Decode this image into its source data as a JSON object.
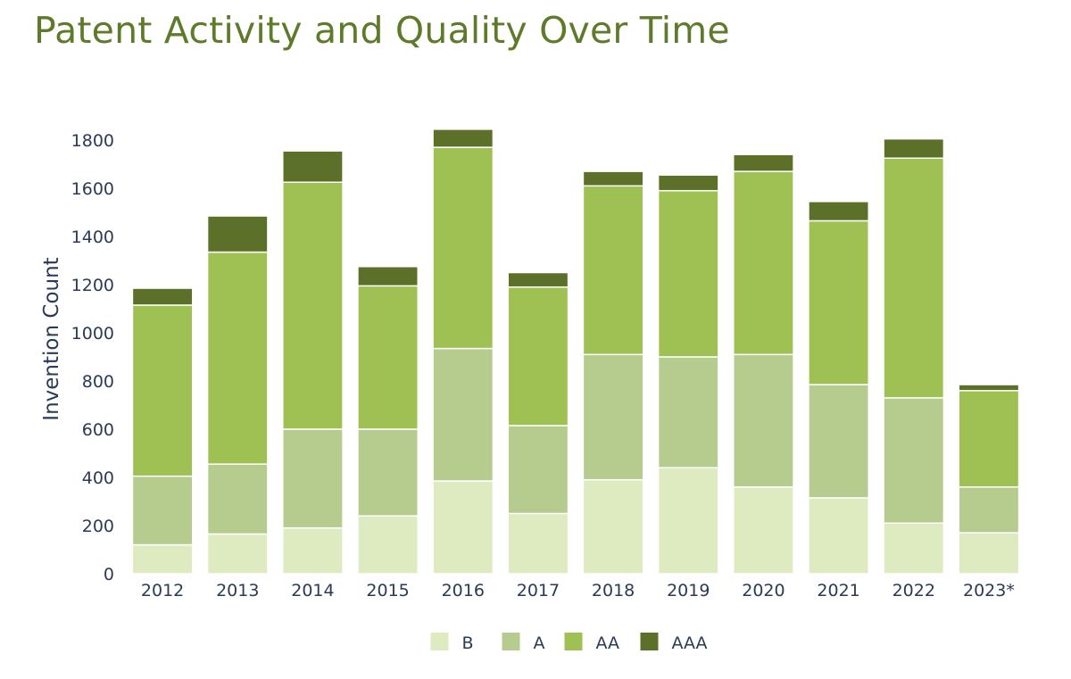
{
  "title": "Patent Activity and Quality Over Time",
  "chart_data": {
    "type": "bar",
    "stacked": true,
    "title": "Patent Activity and Quality Over Time",
    "xlabel": "",
    "ylabel": "Invention Count",
    "ylim": [
      0,
      1800
    ],
    "yticks": [
      0,
      200,
      400,
      600,
      800,
      1000,
      1200,
      1400,
      1600,
      1800
    ],
    "grid": false,
    "legend_position": "bottom-center",
    "categories": [
      "2012",
      "2013",
      "2014",
      "2015",
      "2016",
      "2017",
      "2018",
      "2019",
      "2020",
      "2021",
      "2022",
      "2023*"
    ],
    "series": [
      {
        "name": "B",
        "color": "#deebc0",
        "values": [
          120,
          165,
          190,
          240,
          385,
          250,
          390,
          440,
          360,
          315,
          210,
          170
        ]
      },
      {
        "name": "A",
        "color": "#b6cc8e",
        "values": [
          285,
          290,
          410,
          360,
          550,
          365,
          520,
          460,
          550,
          470,
          520,
          190
        ]
      },
      {
        "name": "AA",
        "color": "#9fc052",
        "values": [
          710,
          880,
          1025,
          595,
          835,
          575,
          700,
          690,
          760,
          680,
          995,
          400
        ]
      },
      {
        "name": "AAA",
        "color": "#5c7029",
        "values": [
          70,
          150,
          130,
          80,
          75,
          60,
          60,
          65,
          70,
          80,
          80,
          25
        ]
      }
    ]
  }
}
